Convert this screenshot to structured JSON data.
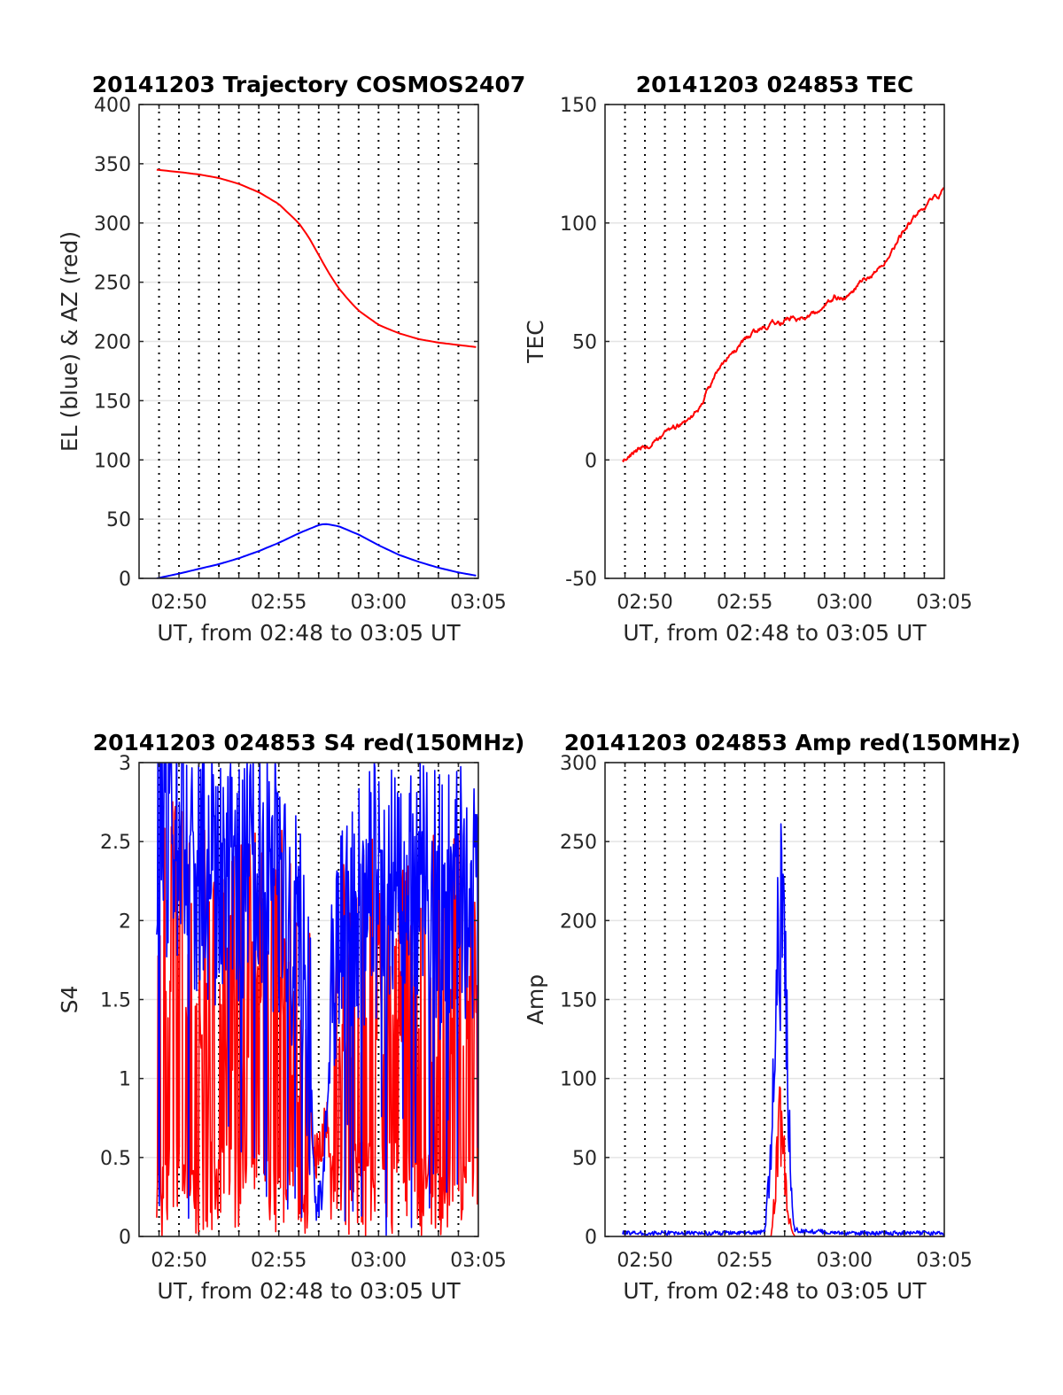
{
  "chart_data": [
    {
      "type": "line",
      "title": "20141203 Trajectory COSMOS2407",
      "xlabel": "UT, from 02:48 to 03:05 UT",
      "ylabel": "EL (blue) & AZ (red)",
      "xlim": [
        "02:48",
        "03:05"
      ],
      "ylim": [
        0,
        400
      ],
      "x_ticks": [
        "02:50",
        "02:55",
        "03:00",
        "03:05"
      ],
      "y_ticks": [
        "0",
        "50",
        "100",
        "150",
        "200",
        "250",
        "300",
        "350",
        "400"
      ],
      "grid": true,
      "series": [
        {
          "color": "#ff0000",
          "x": [
            "02:48:53",
            "02:50:00",
            "02:51:00",
            "02:52:00",
            "02:53:00",
            "02:54:00",
            "02:55:00",
            "02:56:00",
            "02:56:30",
            "02:57:00",
            "02:57:30",
            "02:58:00",
            "02:58:30",
            "02:59:00",
            "03:00:00",
            "03:01:00",
            "03:02:00",
            "03:03:00",
            "03:04:00",
            "03:05:00"
          ],
          "values": [
            345,
            343,
            341,
            338,
            333,
            326,
            316,
            300,
            288,
            273,
            258,
            245,
            235,
            226,
            214,
            207,
            202,
            199,
            197,
            195
          ]
        },
        {
          "color": "#0000ff",
          "x": [
            "02:48:53",
            "02:50:00",
            "02:51:00",
            "02:52:00",
            "02:53:00",
            "02:54:00",
            "02:55:00",
            "02:56:00",
            "02:57:00",
            "02:57:20",
            "02:58:00",
            "02:59:00",
            "03:00:00",
            "03:01:00",
            "03:02:00",
            "03:03:00",
            "03:04:00",
            "03:05:00"
          ],
          "values": [
            0,
            4,
            8,
            12,
            17,
            23,
            30,
            38,
            45,
            46,
            44,
            37,
            28,
            20,
            14,
            9,
            5,
            2
          ]
        }
      ]
    },
    {
      "type": "line",
      "title": "20141203 024853 TEC",
      "xlabel": "UT, from 02:48 to 03:05 UT",
      "ylabel": "TEC",
      "xlim": [
        "02:48",
        "03:05"
      ],
      "ylim": [
        -50,
        150
      ],
      "x_ticks": [
        "02:50",
        "02:55",
        "03:00",
        "03:05"
      ],
      "y_ticks": [
        "-50",
        "0",
        "50",
        "100",
        "150"
      ],
      "grid": true,
      "series": [
        {
          "color": "#ff0000",
          "x": [
            "02:48:53",
            "02:49:30",
            "02:50:00",
            "02:51:00",
            "02:52:00",
            "02:52:50",
            "02:53:10",
            "02:54:00",
            "02:55:00",
            "02:56:00",
            "02:57:00",
            "02:58:00",
            "02:59:00",
            "02:59:30",
            "03:00:00",
            "03:01:00",
            "03:02:00",
            "03:03:00",
            "03:04:00",
            "03:05:00"
          ],
          "values": [
            0,
            4,
            6,
            10,
            16,
            21,
            30,
            42,
            50,
            56,
            59,
            61,
            63,
            69,
            68,
            76,
            84,
            97,
            107,
            114
          ]
        }
      ]
    },
    {
      "type": "line",
      "title": "20141203 024853 S4 red(150MHz)",
      "xlabel": "UT, from 02:48 to 03:05 UT",
      "ylabel": "S4",
      "xlim": [
        "02:48",
        "03:05"
      ],
      "ylim": [
        0,
        3
      ],
      "x_ticks": [
        "02:50",
        "02:55",
        "03:00",
        "03:05"
      ],
      "y_ticks": [
        "0",
        "0.5",
        "1",
        "1.5",
        "2",
        "2.5",
        "3"
      ],
      "grid": true,
      "series": [
        {
          "color": "#ff0000",
          "x": [
            "02:48:53",
            "02:50:00",
            "02:51:00",
            "02:52:00",
            "02:53:00",
            "02:54:00",
            "02:55:00",
            "02:56:00",
            "02:56:30",
            "02:56:50",
            "02:57:10",
            "02:57:40",
            "02:58:00",
            "02:59:00",
            "03:00:00",
            "03:01:00",
            "03:02:00",
            "03:03:00",
            "03:04:00",
            "03:05:00"
          ],
          "values": [
            1.8,
            1.7,
            1.6,
            1.5,
            1.5,
            1.6,
            1.5,
            1.3,
            0.9,
            0.5,
            0.6,
            0.9,
            1.3,
            1.4,
            1.5,
            1.5,
            1.6,
            1.5,
            1.6,
            1.7
          ]
        },
        {
          "color": "#0000ff",
          "x": [
            "02:48:53",
            "02:50:00",
            "02:51:00",
            "02:52:00",
            "02:53:00",
            "02:54:00",
            "02:55:00",
            "02:56:00",
            "02:56:30",
            "02:56:50",
            "02:57:10",
            "02:57:40",
            "02:58:00",
            "02:59:00",
            "03:00:00",
            "03:01:00",
            "03:02:00",
            "03:03:00",
            "03:04:00",
            "03:05:00"
          ],
          "values": [
            2.6,
            2.4,
            2.3,
            2.2,
            2.2,
            2.3,
            2.1,
            1.8,
            1.3,
            0.2,
            0.2,
            1.5,
            1.9,
            2.0,
            2.1,
            2.0,
            2.2,
            2.0,
            2.1,
            2.0
          ]
        }
      ]
    },
    {
      "type": "line",
      "title": "20141203 024853 Amp red(150MHz)",
      "xlabel": "UT, from 02:48 to 03:05 UT",
      "ylabel": "Amp",
      "xlim": [
        "02:48",
        "03:05"
      ],
      "ylim": [
        0,
        300
      ],
      "x_ticks": [
        "02:50",
        "02:55",
        "03:00",
        "03:05"
      ],
      "y_ticks": [
        "0",
        "50",
        "100",
        "150",
        "200",
        "250",
        "300"
      ],
      "grid": true,
      "series": [
        {
          "color": "#ff0000",
          "x": [
            "02:48:53",
            "02:55:00",
            "02:56:20",
            "02:56:30",
            "02:56:40",
            "02:56:50",
            "02:57:00",
            "02:57:10",
            "02:57:20",
            "02:57:30",
            "03:00:00",
            "03:05:00"
          ],
          "values": [
            0,
            0,
            0,
            30,
            70,
            90,
            50,
            20,
            5,
            0,
            0,
            0
          ]
        },
        {
          "color": "#0000ff",
          "x": [
            "02:48:53",
            "02:55:00",
            "02:56:00",
            "02:56:20",
            "02:56:30",
            "02:56:40",
            "02:56:50",
            "02:57:00",
            "02:57:10",
            "02:57:20",
            "02:57:30",
            "03:00:00",
            "03:05:00"
          ],
          "values": [
            1,
            1,
            2,
            60,
            180,
            230,
            238,
            200,
            120,
            30,
            3,
            1,
            1
          ]
        }
      ]
    }
  ]
}
